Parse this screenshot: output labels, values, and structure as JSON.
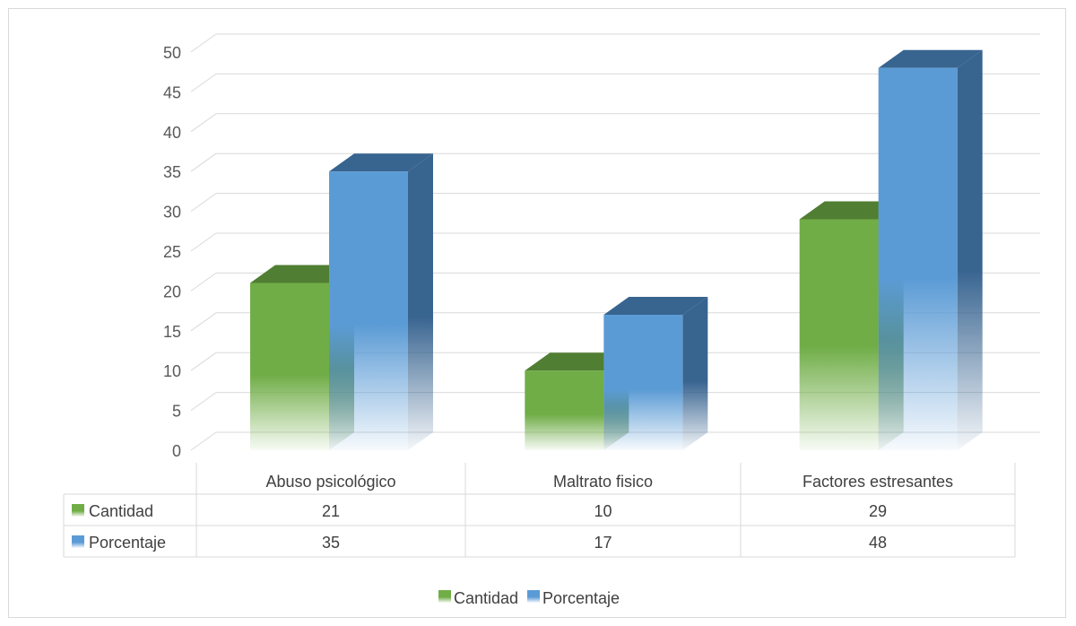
{
  "chart_data": {
    "type": "bar",
    "style": "3d-clustered-column-with-data-table",
    "categories": [
      "Abuso psicológico",
      "Maltrato fisico",
      "Factores estresantes"
    ],
    "series": [
      {
        "name": "Cantidad",
        "values": [
          21,
          10,
          29
        ],
        "color": "#70ad47",
        "side_color": "#507e32"
      },
      {
        "name": "Porcentaje",
        "values": [
          35,
          17,
          48
        ],
        "color": "#5b9bd5",
        "side_color": "#386490"
      }
    ],
    "y_ticks": [
      0,
      5,
      10,
      15,
      20,
      25,
      30,
      35,
      40,
      45,
      50
    ],
    "ylim": [
      0,
      50
    ],
    "grid": true,
    "legend_position": "bottom"
  }
}
